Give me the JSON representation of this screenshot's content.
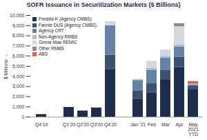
{
  "chart_data": {
    "type": "bar",
    "stacked": true,
    "title": "SOFR Issuance in Securitization Markets ($ Billions)",
    "y_label": "$ Millions",
    "categories": [
      "Q4'19",
      null,
      "Q1'20",
      "Q2'20",
      "Q3'20",
      "Q4'20",
      null,
      "Jan '21",
      "Feb",
      "Mar",
      "Apr",
      "May\n2021\nYTD"
    ],
    "series": [
      {
        "name": "Freddie K (Agency CMBS)",
        "color": "#1f2d4d",
        "values": [
          250,
          0,
          950,
          600,
          900,
          4700,
          0,
          1800,
          2400,
          3700,
          4900,
          2700
        ]
      },
      {
        "name": "Fannie DUS (Agency CMBS)",
        "color": "#3a5270",
        "values": [
          0,
          0,
          0,
          0,
          0,
          1400,
          0,
          800,
          900,
          900,
          1000,
          400
        ]
      },
      {
        "name": "Agency CRT",
        "color": "#6283a6",
        "values": [
          0,
          0,
          0,
          0,
          0,
          2900,
          0,
          1000,
          1300,
          1200,
          1000,
          0
        ]
      },
      {
        "name": "Non-Agency RMBS",
        "color": "#a9bed3",
        "values": [
          0,
          0,
          0,
          0,
          0,
          0,
          0,
          100,
          200,
          200,
          200,
          100
        ]
      },
      {
        "name": "Ginnie Mae REMIC",
        "color": "#d3d8de",
        "values": [
          0,
          0,
          0,
          0,
          0,
          400,
          0,
          0,
          700,
          600,
          1800,
          0
        ]
      },
      {
        "name": "Other RMBS",
        "color": "#8c8c8c",
        "values": [
          0,
          0,
          0,
          0,
          0,
          0,
          0,
          0,
          0,
          0,
          300,
          100
        ]
      },
      {
        "name": "ABS",
        "color": "#e8584f",
        "values": [
          0,
          0,
          0,
          0,
          0,
          0,
          0,
          0,
          0,
          0,
          0,
          200
        ]
      }
    ],
    "ylim": [
      0,
      10000
    ],
    "yticks": [
      0,
      {
        "value": 1000,
        "label": "1,000"
      },
      {
        "value": 2000,
        "label": "2,000"
      },
      {
        "value": 3000,
        "label": "3,000"
      },
      {
        "value": 4000,
        "label": "4,000"
      },
      {
        "value": 5000,
        "label": "5,000"
      },
      {
        "value": 6000,
        "label": "6,000"
      },
      {
        "value": 7000,
        "label": "7,000"
      },
      {
        "value": 8000,
        "label": "8,000"
      },
      {
        "value": 9000,
        "label": "9,000"
      },
      {
        "value": 10000,
        "label": "10,000"
      }
    ],
    "grid": false,
    "legend": "upper left"
  }
}
